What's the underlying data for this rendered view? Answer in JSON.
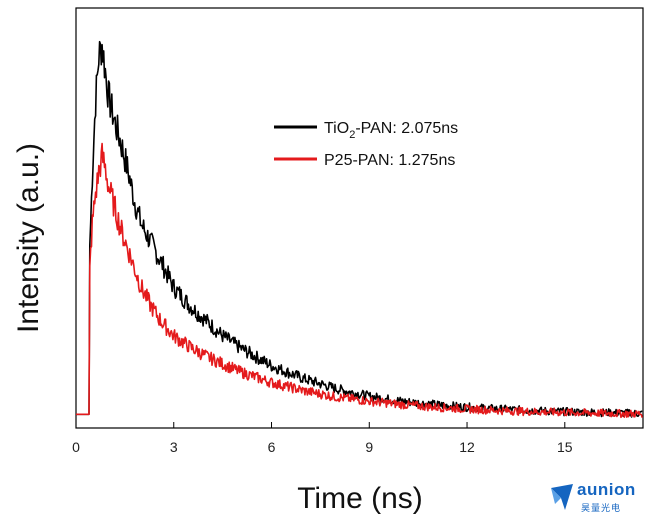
{
  "chart_data": {
    "type": "line",
    "title": "",
    "xlabel": "Time (ns)",
    "ylabel": "Intensity (a.u.)",
    "xlim": [
      0,
      17.4
    ],
    "ylim": [
      0,
      1.05
    ],
    "x_ticks": [
      0,
      3,
      6,
      9,
      12,
      15
    ],
    "y_ticks": [],
    "grid": false,
    "legend_position": "upper-right",
    "legend": {
      "series1": {
        "prefix": "TiO",
        "subscript": "2",
        "suffix": "-PAN: 2.075ns"
      },
      "series2": {
        "text": "P25-PAN: 1.275ns"
      }
    },
    "series": [
      {
        "name": "TiO2-PAN: 2.075ns",
        "color": "#000000",
        "x": [
          0,
          0.4,
          0.42,
          0.5,
          0.6,
          0.7,
          0.8,
          0.9,
          1.0,
          1.2,
          1.4,
          1.6,
          1.8,
          2.0,
          2.3,
          2.6,
          3.0,
          3.5,
          4.0,
          4.5,
          5.0,
          5.5,
          6.0,
          7.0,
          8.0,
          9.0,
          10.0,
          11.0,
          12.0,
          13.0,
          14.0,
          15.0,
          16.0,
          17.4
        ],
        "values": [
          0.01,
          0.01,
          0.45,
          0.65,
          0.85,
          0.97,
          1.0,
          0.93,
          0.86,
          0.79,
          0.73,
          0.66,
          0.58,
          0.52,
          0.47,
          0.42,
          0.35,
          0.3,
          0.26,
          0.22,
          0.19,
          0.165,
          0.14,
          0.105,
          0.078,
          0.058,
          0.045,
          0.036,
          0.029,
          0.024,
          0.02,
          0.017,
          0.015,
          0.012
        ]
      },
      {
        "name": "P25-PAN: 1.275ns",
        "color": "#e41a1c",
        "x": [
          0,
          0.4,
          0.42,
          0.5,
          0.6,
          0.7,
          0.8,
          0.9,
          1.0,
          1.2,
          1.4,
          1.6,
          1.8,
          2.0,
          2.3,
          2.6,
          3.0,
          3.5,
          4.0,
          4.5,
          5.0,
          5.5,
          6.0,
          7.0,
          8.0,
          9.0,
          10.0,
          11.0,
          12.0,
          13.0,
          14.0,
          15.0,
          16.0,
          17.4
        ],
        "values": [
          0.01,
          0.01,
          0.4,
          0.52,
          0.6,
          0.66,
          0.7,
          0.67,
          0.62,
          0.56,
          0.5,
          0.45,
          0.4,
          0.35,
          0.3,
          0.26,
          0.22,
          0.19,
          0.165,
          0.145,
          0.125,
          0.11,
          0.095,
          0.073,
          0.056,
          0.045,
          0.036,
          0.029,
          0.024,
          0.02,
          0.017,
          0.015,
          0.013,
          0.011
        ]
      }
    ]
  },
  "watermark": {
    "brand": "aunion",
    "subtitle": "昊量光电",
    "color": "#1565c0"
  }
}
